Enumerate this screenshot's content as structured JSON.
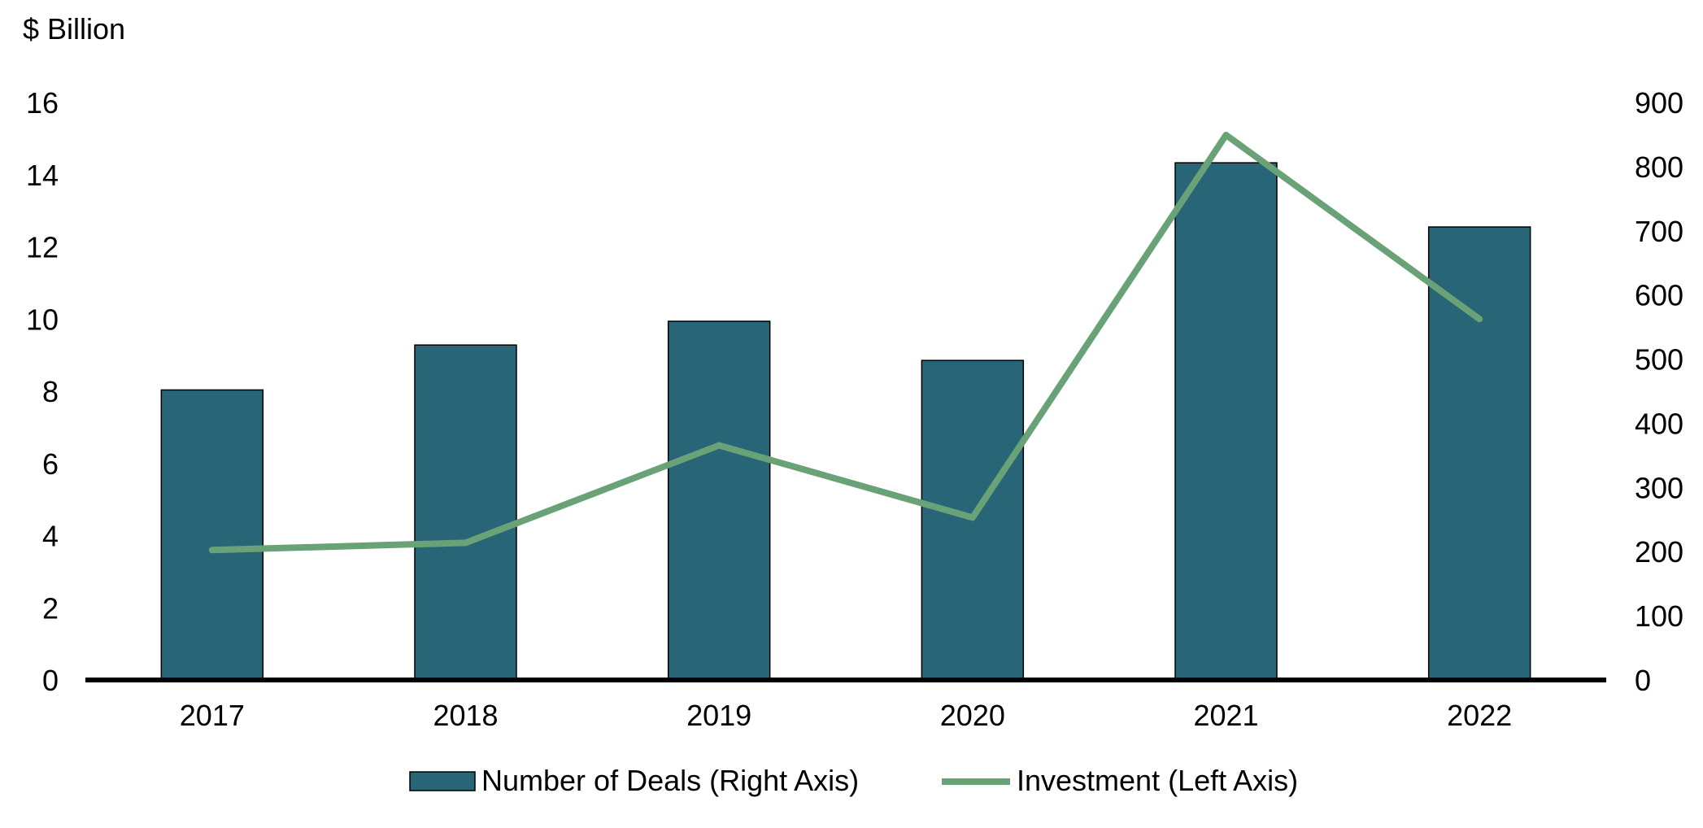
{
  "chart_data": {
    "type": "bar",
    "left_axis_title": "$ Billion",
    "categories": [
      "2017",
      "2018",
      "2019",
      "2020",
      "2021",
      "2022"
    ],
    "series": [
      {
        "name": "Number of Deals (Right Axis)",
        "type": "bar",
        "axis": "right",
        "values": [
          452,
          522,
          559,
          498,
          806,
          706
        ]
      },
      {
        "name": "Investment (Left Axis)",
        "type": "line",
        "axis": "left",
        "values": [
          3.6,
          3.8,
          6.5,
          4.5,
          15.1,
          10.0
        ]
      }
    ],
    "left_axis": {
      "ylim": [
        0,
        16
      ],
      "ticks": [
        "0",
        "2",
        "4",
        "6",
        "8",
        "10",
        "12",
        "14",
        "16"
      ]
    },
    "right_axis": {
      "ylim": [
        0,
        900
      ],
      "ticks": [
        "0",
        "100",
        "200",
        "300",
        "400",
        "500",
        "600",
        "700",
        "800",
        "900"
      ]
    },
    "grid": false,
    "legend_position": "bottom-center",
    "colors": {
      "bar": "#286577",
      "line": "#6aa277",
      "axis": "#000000"
    }
  }
}
